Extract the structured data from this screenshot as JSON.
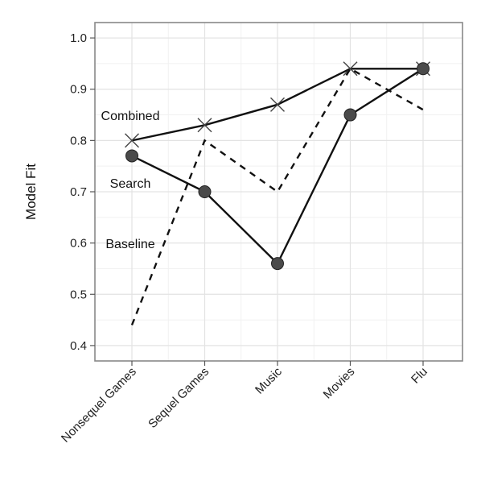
{
  "chart_data": {
    "type": "line",
    "title": "",
    "xlabel": "",
    "ylabel": "Model Fit",
    "ylim": [
      0.37,
      1.03
    ],
    "yticks": [
      0.4,
      0.5,
      0.6,
      0.7,
      0.8,
      0.9,
      1.0
    ],
    "ytick_labels": [
      "0.4",
      "0.5",
      "0.6",
      "0.7",
      "0.8",
      "0.9",
      "1.0"
    ],
    "grid": true,
    "legend": "inline labels",
    "categories": [
      "Nonsequel Games",
      "Sequel Games",
      "Music",
      "Movies",
      "Flu"
    ],
    "series": [
      {
        "name": "Combined",
        "values": [
          0.8,
          0.83,
          0.87,
          0.94,
          0.94
        ],
        "marker": "x",
        "dash": "solid",
        "color": "#111111"
      },
      {
        "name": "Search",
        "values": [
          0.77,
          0.7,
          0.56,
          0.85,
          0.94
        ],
        "marker": "circle",
        "dash": "solid",
        "color": "#111111"
      },
      {
        "name": "Baseline",
        "values": [
          0.44,
          0.8,
          0.7,
          0.94,
          0.86
        ],
        "marker": "none",
        "dash": "dashed",
        "color": "#111111"
      }
    ]
  }
}
